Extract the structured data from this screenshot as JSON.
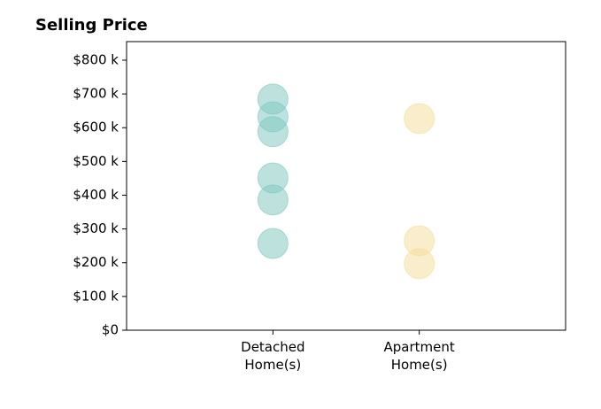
{
  "chart_data": {
    "type": "strip",
    "title": "Selling Price",
    "categories": [
      "Detached\nHome(s)",
      "Apartment\nHome(s)"
    ],
    "values": [
      [
        685000,
        632000,
        588000,
        451000,
        386000,
        257000
      ],
      [
        627000,
        265000,
        197000
      ]
    ],
    "colors": [
      "#7cc6bd",
      "#f5dc9a"
    ],
    "ylim": [
      0,
      855000
    ],
    "yticks": [
      {
        "value": 0,
        "label": "$0"
      },
      {
        "value": 100000,
        "label": "$100 k"
      },
      {
        "value": 200000,
        "label": "$200 k"
      },
      {
        "value": 300000,
        "label": "$300 k"
      },
      {
        "value": 400000,
        "label": "$400 k"
      },
      {
        "value": 500000,
        "label": "$500 k"
      },
      {
        "value": 600000,
        "label": "$600 k"
      },
      {
        "value": 700000,
        "label": "$700 k"
      },
      {
        "value": 800000,
        "label": "$800 k"
      }
    ],
    "grid": false
  }
}
